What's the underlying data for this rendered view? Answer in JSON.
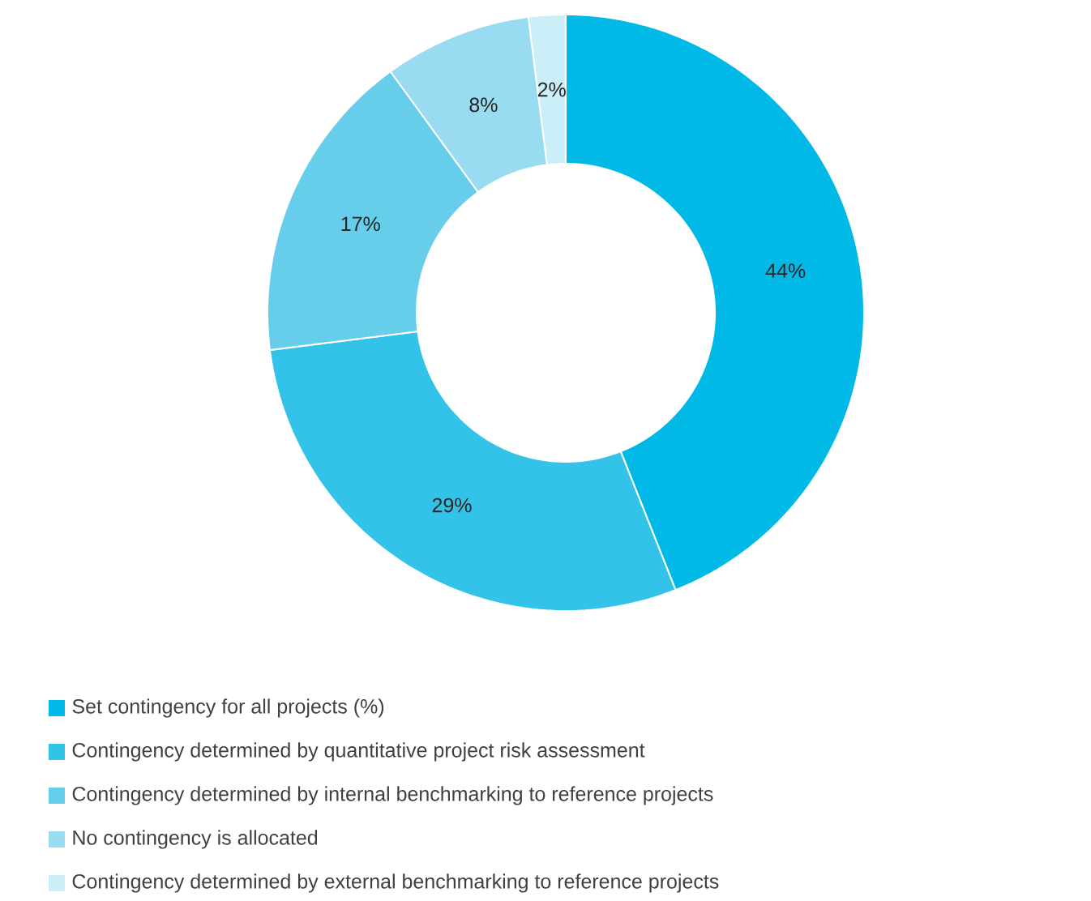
{
  "chart_data": {
    "type": "donut",
    "categories": [
      "Set contingency for all projects (%)",
      "Contingency determined by quantitative project risk assessment",
      "Contingency determined by internal benchmarking to reference projects",
      "No contingency is allocated",
      "Contingency determined by external benchmarking to reference projects"
    ],
    "values": [
      44,
      29,
      17,
      8,
      2
    ],
    "value_labels": [
      "44%",
      "29%",
      "17%",
      "8%",
      "2%"
    ],
    "colors": [
      "#00b9e6",
      "#33c3e8",
      "#66cdeb",
      "#99dbf1",
      "#cceef8"
    ],
    "legend": "bottom"
  }
}
